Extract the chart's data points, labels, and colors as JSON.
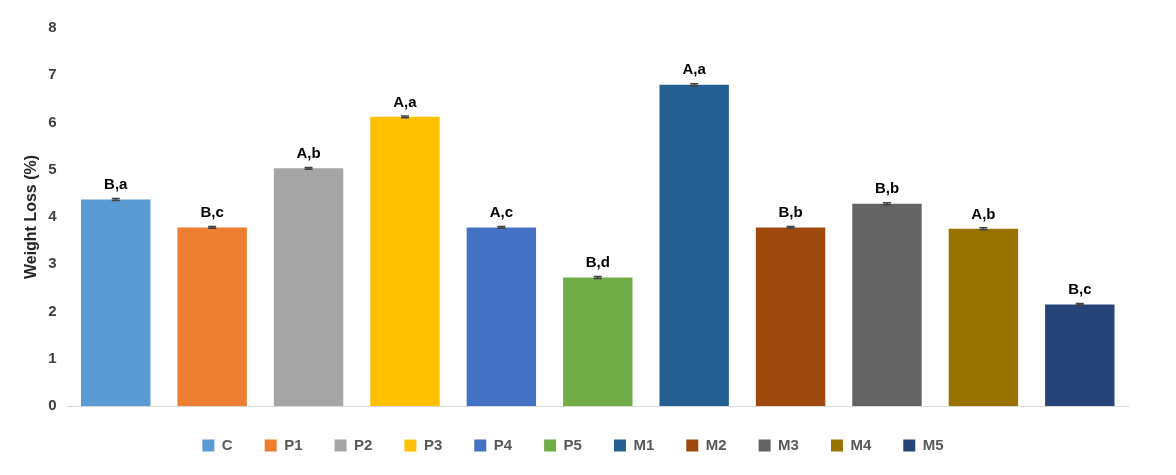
{
  "chart_data": {
    "type": "bar",
    "ylabel": "Weight Loss (%)",
    "categories": [
      null,
      null,
      null,
      null,
      null,
      null,
      null,
      null,
      null,
      null,
      null
    ],
    "series": [
      {
        "name": "C",
        "color": "#5b9bd5",
        "values": [
          4.37,
          null,
          null,
          null,
          null,
          null,
          null,
          null,
          null,
          null,
          null
        ],
        "errors": [
          0.02,
          null,
          null,
          null,
          null,
          null,
          null,
          null,
          null,
          null,
          null
        ]
      },
      {
        "name": "P1",
        "color": "#ed7d31",
        "values": [
          null,
          3.78,
          null,
          null,
          null,
          null,
          null,
          null,
          null,
          null,
          null
        ],
        "errors": [
          null,
          0.02,
          null,
          null,
          null,
          null,
          null,
          null,
          null,
          null,
          null
        ]
      },
      {
        "name": "P2",
        "color": "#a5a5a5",
        "values": [
          null,
          null,
          5.03,
          null,
          null,
          null,
          null,
          null,
          null,
          null,
          null
        ],
        "errors": [
          null,
          null,
          0.02,
          null,
          null,
          null,
          null,
          null,
          null,
          null,
          null
        ]
      },
      {
        "name": "P3",
        "color": "#ffc000",
        "values": [
          null,
          null,
          null,
          6.12,
          null,
          null,
          null,
          null,
          null,
          null,
          null
        ],
        "errors": [
          null,
          null,
          null,
          0.02,
          null,
          null,
          null,
          null,
          null,
          null,
          null
        ]
      },
      {
        "name": "P4",
        "color": "#4472c4",
        "values": [
          null,
          null,
          null,
          null,
          3.78,
          null,
          null,
          null,
          null,
          null,
          null
        ],
        "errors": [
          null,
          null,
          null,
          null,
          0.02,
          null,
          null,
          null,
          null,
          null,
          null
        ]
      },
      {
        "name": "P5",
        "color": "#70ad47",
        "values": [
          null,
          null,
          null,
          null,
          null,
          2.72,
          null,
          null,
          null,
          null,
          null
        ],
        "errors": [
          null,
          null,
          null,
          null,
          null,
          0.02,
          null,
          null,
          null,
          null,
          null
        ]
      },
      {
        "name": "M1",
        "color": "#255e91",
        "values": [
          null,
          null,
          null,
          null,
          null,
          null,
          6.8,
          null,
          null,
          null,
          null
        ],
        "errors": [
          null,
          null,
          null,
          null,
          null,
          null,
          0.02,
          null,
          null,
          null,
          null
        ]
      },
      {
        "name": "M2",
        "color": "#9e480e",
        "values": [
          null,
          null,
          null,
          null,
          null,
          null,
          null,
          3.78,
          null,
          null,
          null
        ],
        "errors": [
          null,
          null,
          null,
          null,
          null,
          null,
          null,
          0.02,
          null,
          null,
          null
        ]
      },
      {
        "name": "M3",
        "color": "#636363",
        "values": [
          null,
          null,
          null,
          null,
          null,
          null,
          null,
          null,
          4.28,
          null,
          null
        ],
        "errors": [
          null,
          null,
          null,
          null,
          null,
          null,
          null,
          null,
          0.02,
          null,
          null
        ]
      },
      {
        "name": "M4",
        "color": "#997300",
        "values": [
          null,
          null,
          null,
          null,
          null,
          null,
          null,
          null,
          null,
          3.75,
          null
        ],
        "errors": [
          null,
          null,
          null,
          null,
          null,
          null,
          null,
          null,
          null,
          0.02,
          null
        ]
      },
      {
        "name": "M5",
        "color": "#264478",
        "values": [
          null,
          null,
          null,
          null,
          null,
          null,
          null,
          null,
          null,
          null,
          2.15
        ],
        "errors": [
          null,
          null,
          null,
          null,
          null,
          null,
          null,
          null,
          null,
          null,
          0.02
        ]
      }
    ],
    "annotations": [
      "B,a",
      "B,c",
      "A,b",
      "A,a",
      "A,c",
      "B,d",
      "A,a",
      "B,b",
      "B,b",
      "A,b",
      "B,c"
    ],
    "ylim": [
      0,
      8
    ],
    "yticks": [
      0,
      1,
      2,
      3,
      4,
      5,
      6,
      7,
      8
    ],
    "grid": false,
    "legend": "bottom",
    "tick_labels": "y"
  }
}
